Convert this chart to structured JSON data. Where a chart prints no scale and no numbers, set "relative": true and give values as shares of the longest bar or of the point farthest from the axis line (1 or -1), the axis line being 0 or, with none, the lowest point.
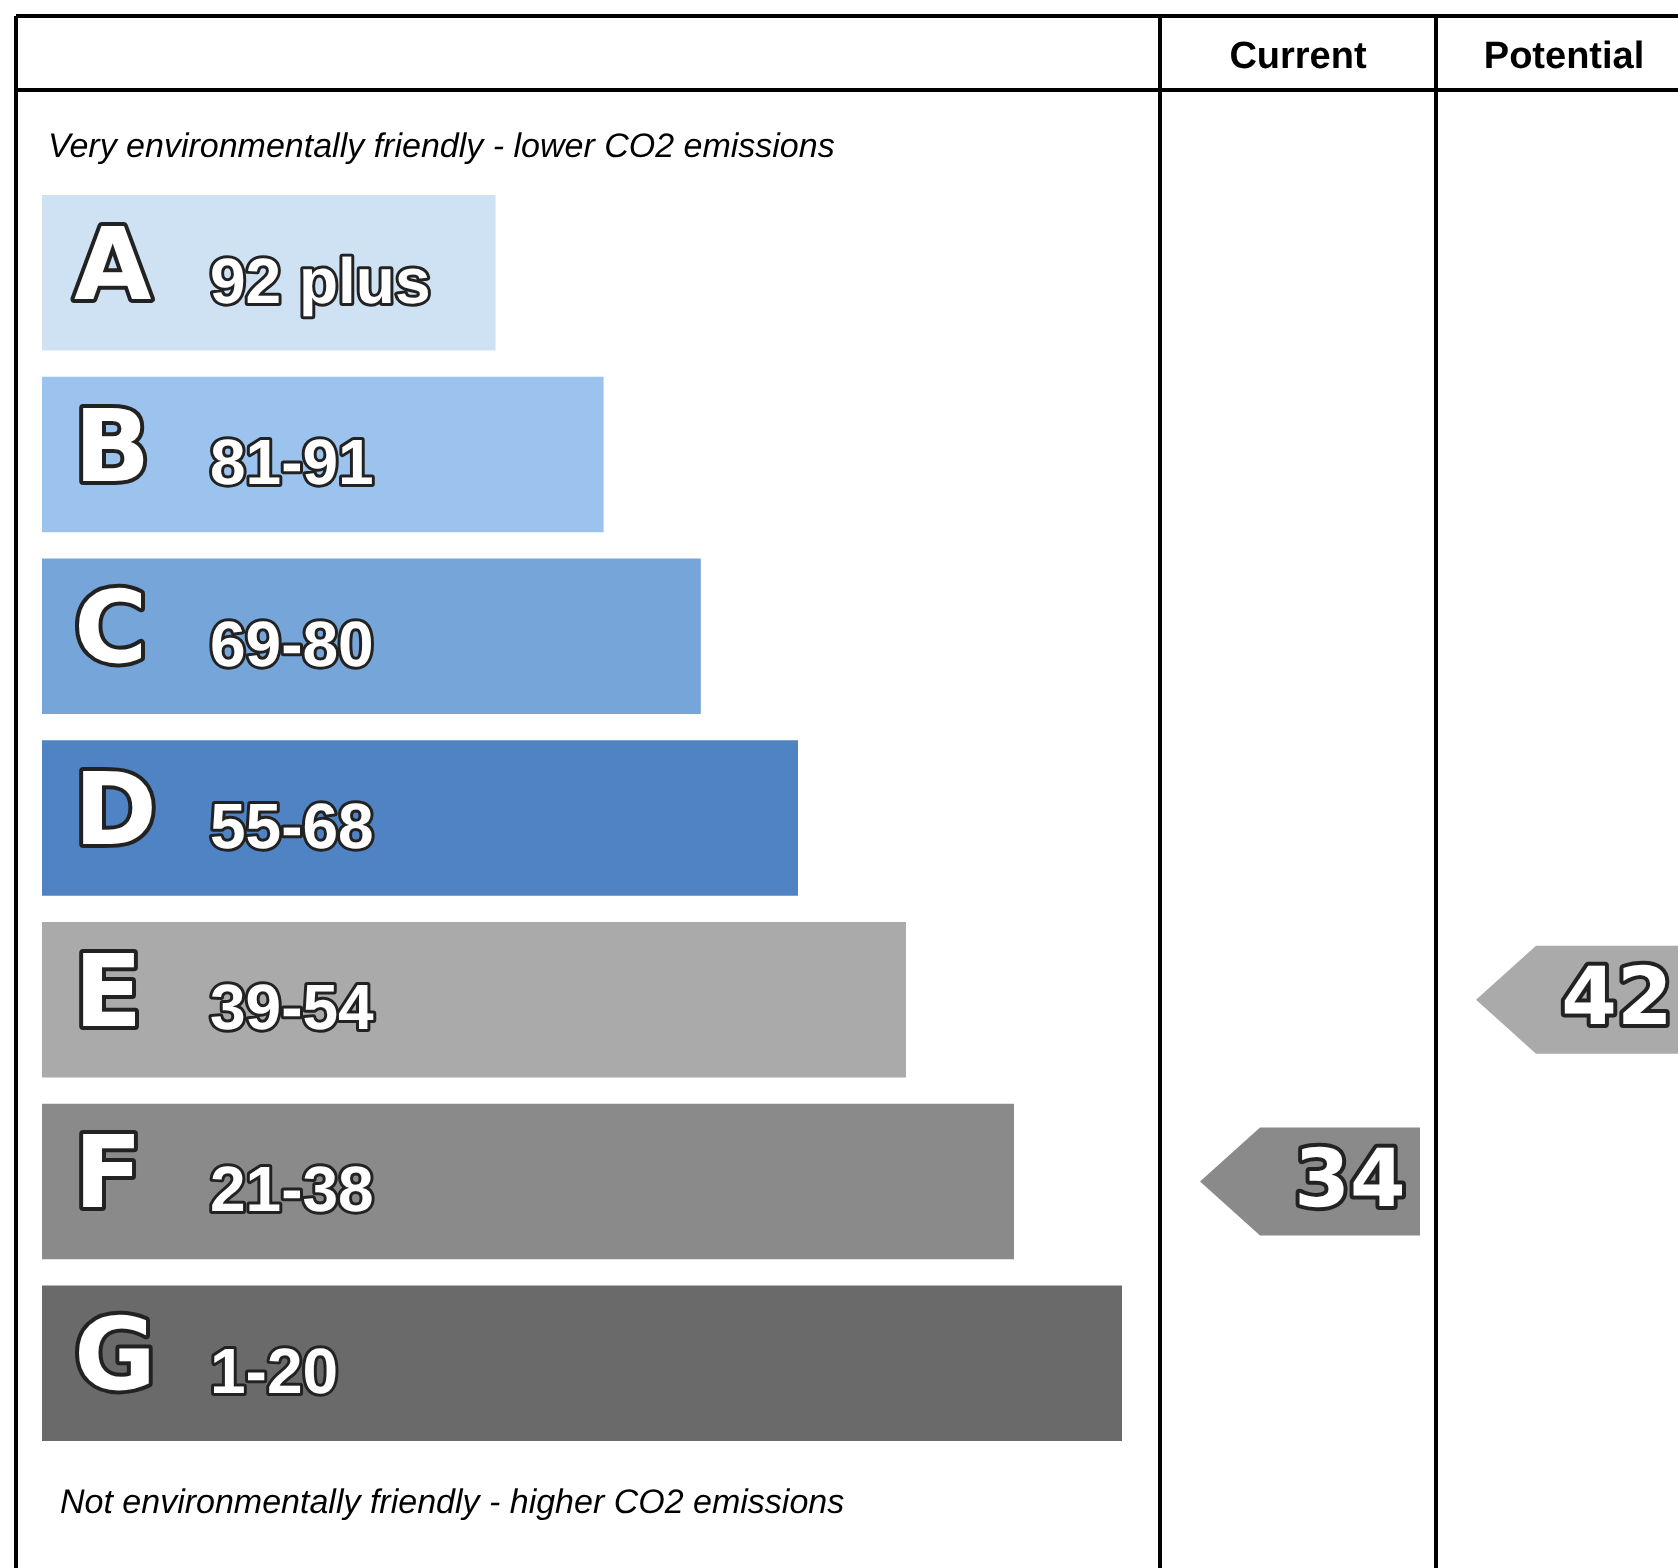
{
  "chart_data": {
    "type": "bar",
    "orientation": "horizontal",
    "relative": true,
    "categories": [
      "A 92 plus",
      "B 81-91",
      "C 69-80",
      "D 55-68",
      "E 39-54",
      "F 21-38",
      "G 1-20"
    ],
    "values": [
      0.42,
      0.52,
      0.61,
      0.7,
      0.8,
      0.9,
      1
    ],
    "colors": [
      "#cfe2f3",
      "#9cc3ee",
      "#76a5da",
      "#4f83c4",
      "#aaaaaa",
      "#8a8a8a",
      "#6a6a6a"
    ],
    "annotations": [
      "Very environmentally friendly - lower CO2 emissions",
      "Not environmentally friendly - higher CO2 emissions",
      "Current",
      "Potential",
      "34",
      "42"
    ]
  }
}
